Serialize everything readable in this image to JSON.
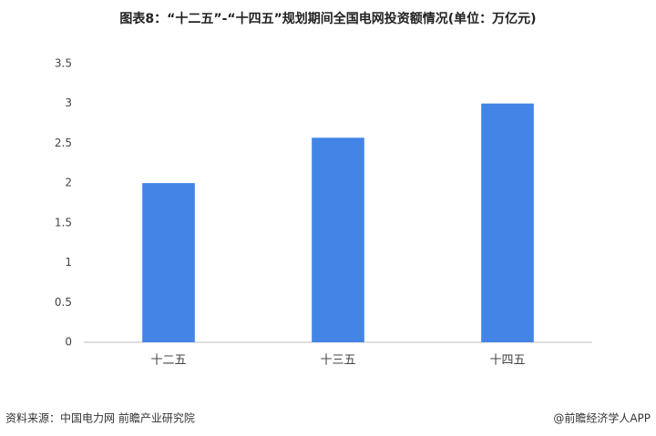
{
  "chart_data": {
    "type": "bar",
    "title": "图表8：“十二五”-“十四五”规划期间全国电网投资额情况(单位：万亿元)",
    "categories": [
      "十二五",
      "十三五",
      "十四五"
    ],
    "values": [
      2,
      2.57,
      3
    ],
    "color": "#4285e6",
    "ylim": [
      0,
      3.5
    ],
    "yticks": [
      0,
      0.5,
      1,
      1.5,
      2,
      2.5,
      3,
      3.5
    ],
    "grid": false,
    "source": "资料来源：中国电力网 前瞻产业研究院",
    "credit": "@前瞻经济学人APP"
  }
}
